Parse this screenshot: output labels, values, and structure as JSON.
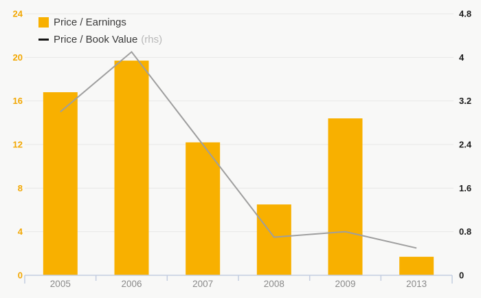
{
  "legend": {
    "bar_label": "Price / Earnings",
    "line_label": "Price / Book Value",
    "line_label_suffix": "(rhs)"
  },
  "colors": {
    "background": "#F8F8F7",
    "bar": "#F8B000",
    "line": "#9E9E9E",
    "legend_line_swatch": "#141414",
    "legend_text": "#3A3A3A",
    "legend_muted": "#B8B8B8",
    "left_axis_label": "#F2A702",
    "right_axis_label": "#1B1B1B",
    "x_axis_label": "#8A8A8A",
    "axis_line": "#C3CDE0",
    "gridline": "#E9E9E7"
  },
  "chart_data": {
    "type": "bar",
    "categories": [
      "2005",
      "2006",
      "2007",
      "2008",
      "2009",
      "2013"
    ],
    "series": [
      {
        "name": "Price / Earnings",
        "type": "bar",
        "axis": "left",
        "values": [
          16.8,
          19.7,
          12.2,
          6.5,
          14.4,
          1.7
        ]
      },
      {
        "name": "Price / Book Value (rhs)",
        "type": "line",
        "axis": "right",
        "values": [
          3.0,
          4.1,
          2.4,
          0.7,
          0.8,
          0.5
        ]
      }
    ],
    "left_axis": {
      "min": 0,
      "max": 24,
      "ticks": [
        0,
        4,
        8,
        12,
        16,
        20,
        24
      ]
    },
    "right_axis": {
      "min": 0,
      "max": 4.8,
      "ticks": [
        0,
        0.8,
        1.6,
        2.4,
        3.2,
        4,
        4.8
      ]
    },
    "grid": true,
    "legend_position": "top-left",
    "title": "",
    "xlabel": "",
    "ylabel_left": "",
    "ylabel_right": ""
  }
}
